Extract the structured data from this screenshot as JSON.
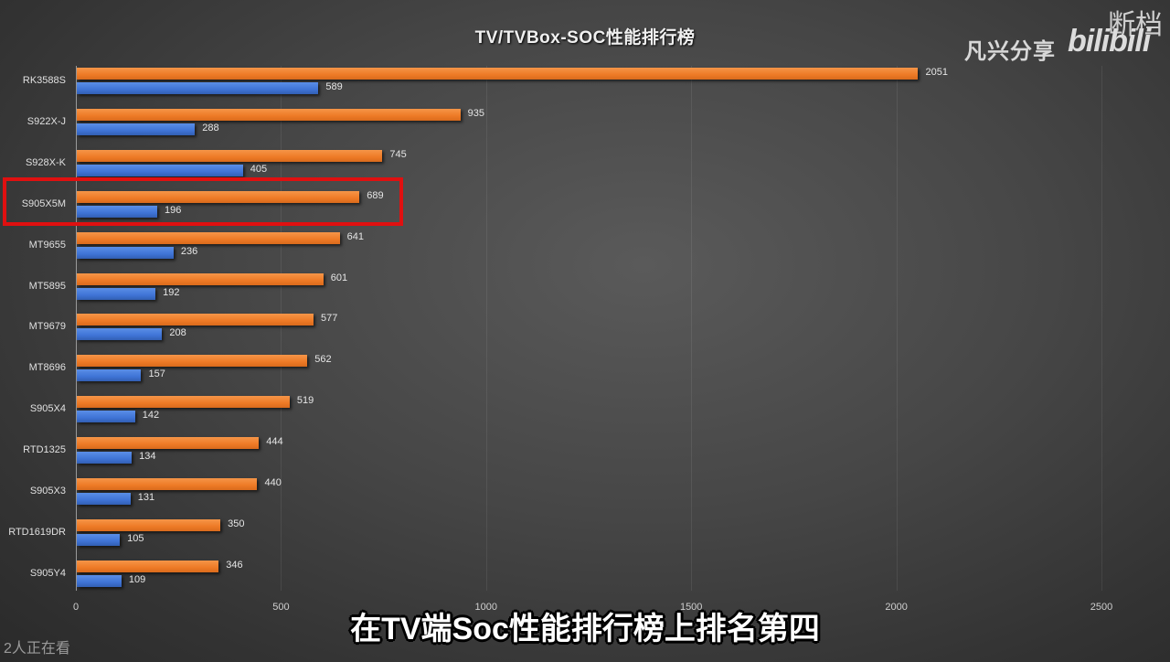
{
  "header": {
    "title": "TV/TVBox-SOC性能排行榜",
    "channel_name": "凡兴分享",
    "platform_logo": "bilibili",
    "watermark": "断档"
  },
  "overlay": {
    "subtitle": "在TV端Soc性能排行榜上排名第四",
    "viewers": "2人正在看",
    "highlighted_category": "S905X5M"
  },
  "colors": {
    "series_orange": "#ee7a26",
    "series_blue": "#3f74d6",
    "highlight_box": "#e01010",
    "background": "#464646"
  },
  "chart_data": {
    "type": "bar",
    "orientation": "horizontal",
    "title": "TV/TVBox-SOC性能排行榜",
    "xlabel": "",
    "ylabel": "",
    "xlim": [
      0,
      2500
    ],
    "xticks": [
      0,
      500,
      1000,
      1500,
      2000,
      2500
    ],
    "xtick_labels": [
      "0",
      "500",
      "1000",
      "1500",
      "2000",
      "2500"
    ],
    "grid": "vertical",
    "legend": "none",
    "data_labels": true,
    "categories": [
      "RK3588S",
      "S922X-J",
      "S928X-K",
      "S905X5M",
      "MT9655",
      "MT5895",
      "MT9679",
      "MT8696",
      "S905X4",
      "RTD1325",
      "S905X3",
      "RTD1619DR",
      "S905Y4"
    ],
    "series": [
      {
        "name": "orange",
        "color": "#ee7a26",
        "values": [
          2051,
          935,
          745,
          689,
          641,
          601,
          577,
          562,
          519,
          444,
          440,
          350,
          346
        ]
      },
      {
        "name": "blue",
        "color": "#3f74d6",
        "values": [
          589,
          288,
          405,
          196,
          236,
          192,
          208,
          157,
          142,
          134,
          131,
          105,
          109
        ]
      }
    ]
  }
}
